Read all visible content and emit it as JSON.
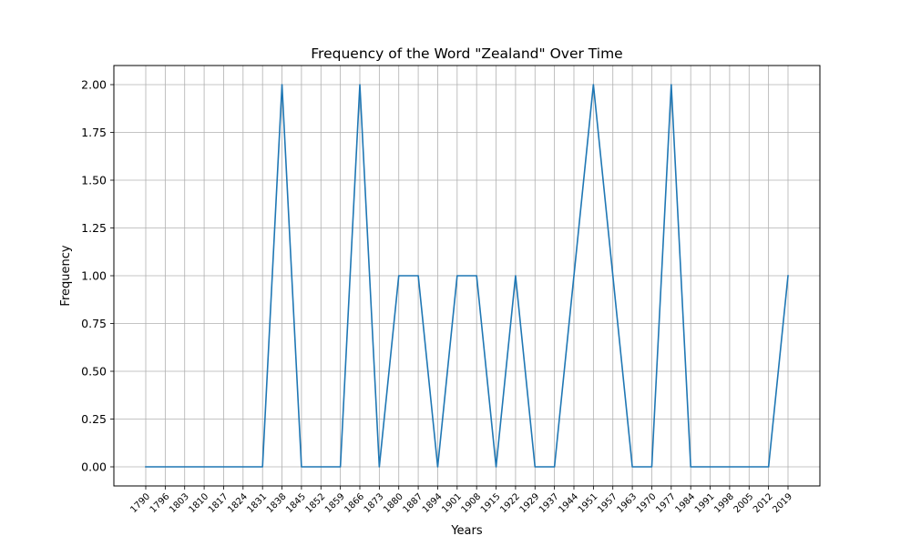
{
  "chart_data": {
    "type": "line",
    "title": "Frequency of the Word \"Zealand\" Over Time",
    "xlabel": "Years",
    "ylabel": "Frequency",
    "x": [
      1790,
      1796,
      1803,
      1810,
      1817,
      1824,
      1831,
      1838,
      1845,
      1852,
      1859,
      1866,
      1873,
      1880,
      1887,
      1894,
      1901,
      1908,
      1915,
      1922,
      1929,
      1937,
      1944,
      1951,
      1957,
      1963,
      1970,
      1977,
      1984,
      1991,
      1998,
      2005,
      2012,
      2019
    ],
    "x_tick_labels": [
      "1790",
      "1796",
      "1803",
      "1810",
      "1817",
      "1824",
      "1831",
      "1838",
      "1845",
      "1852",
      "1859",
      "1866",
      "1873",
      "1880",
      "1887",
      "1894",
      "1901",
      "1908",
      "1915",
      "1922",
      "1929",
      "1937",
      "1944",
      "1951",
      "1957",
      "1963",
      "1970",
      "1977",
      "1984",
      "1991",
      "1998",
      "2005",
      "2012",
      "2019"
    ],
    "series": [
      {
        "values": [
          0,
          0,
          0,
          0,
          0,
          0,
          0,
          2,
          0,
          0,
          0,
          2,
          0,
          1,
          1,
          0,
          1,
          1,
          0,
          1,
          0,
          0,
          1,
          2,
          1,
          0,
          0,
          2,
          0,
          0,
          0,
          0,
          0,
          1
        ]
      }
    ],
    "ylim": [
      -0.1,
      2.1
    ],
    "y_ticks": [
      0.0,
      0.25,
      0.5,
      0.75,
      1.0,
      1.25,
      1.5,
      1.75,
      2.0
    ],
    "y_tick_labels": [
      "0.00",
      "0.25",
      "0.50",
      "0.75",
      "1.00",
      "1.25",
      "1.50",
      "1.75",
      "2.00"
    ],
    "x_axis": "categorical",
    "grid": true,
    "legend": "none",
    "colors": {
      "line": "#1f77b4",
      "grid": "#b0b0b0",
      "axes": "#000000"
    }
  }
}
